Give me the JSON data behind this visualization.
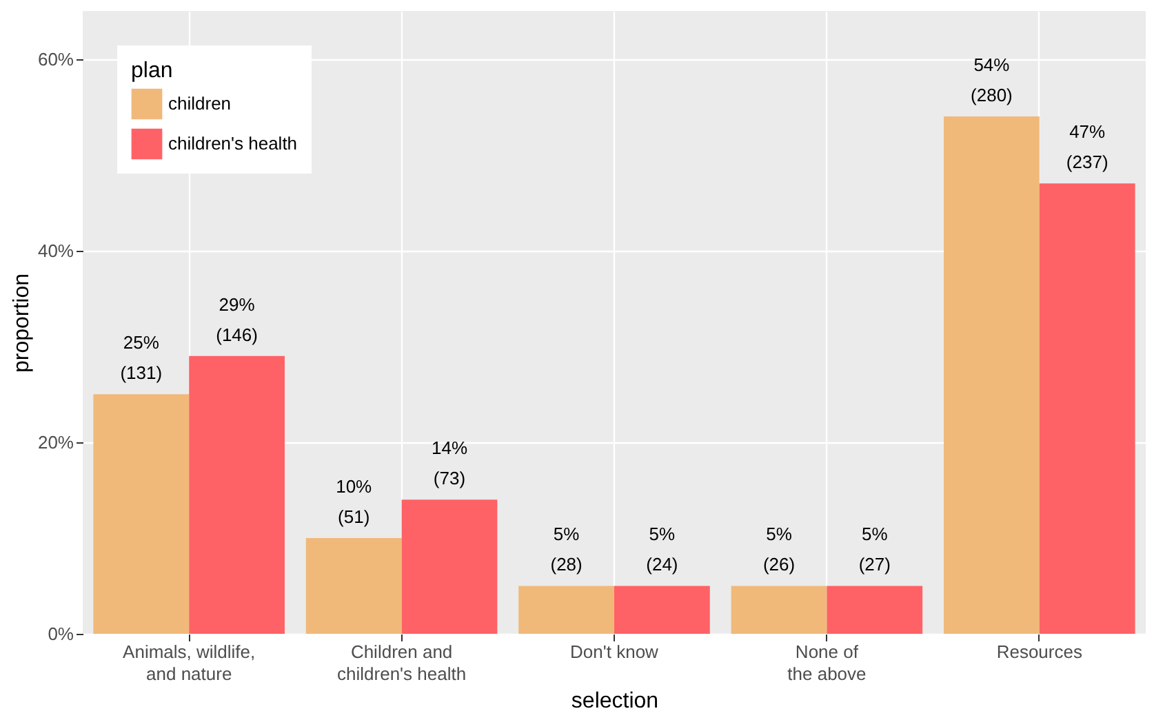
{
  "chart_data": {
    "type": "bar",
    "xlabel": "selection",
    "ylabel": "proportion",
    "legend_title": "plan",
    "legend": "top left",
    "grid": true,
    "categories": [
      "Animals, wildlife,\nand nature",
      "Children and\nchildren's health",
      "Don't know",
      "None of\nthe above",
      "Resources"
    ],
    "series": [
      {
        "name": "children",
        "color": "#f0b97a",
        "values": [
          25,
          10,
          5,
          5,
          54
        ],
        "value_labels": [
          "25%\n(131)",
          "10%\n(51)",
          "5%\n(28)",
          "5%\n(26)",
          "54%\n(280)"
        ]
      },
      {
        "name": "children's health",
        "color": "#fe6266",
        "values": [
          29,
          14,
          5,
          5,
          47
        ],
        "value_labels": [
          "29%\n(146)",
          "14%\n(73)",
          "5%\n(24)",
          "5%\n(27)",
          "47%\n(237)"
        ]
      }
    ],
    "ylim": [
      0,
      65
    ],
    "yticks": [
      {
        "value": 0,
        "label": "0%"
      },
      {
        "value": 20,
        "label": "20%"
      },
      {
        "value": 40,
        "label": "40%"
      },
      {
        "value": 60,
        "label": "60%"
      }
    ]
  }
}
